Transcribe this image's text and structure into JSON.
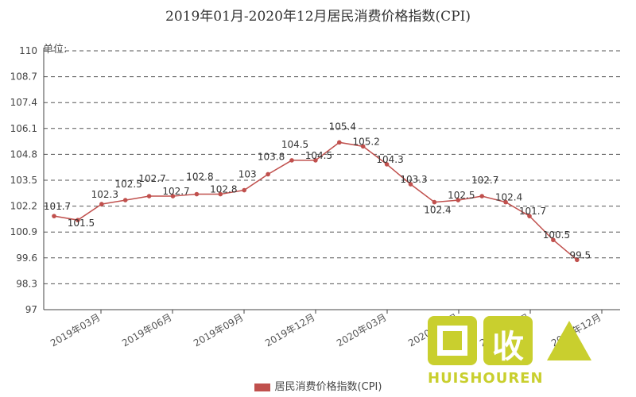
{
  "chart_data": {
    "type": "line",
    "title": "2019年01月-2020年12月居民消费价格指数(CPI)",
    "unit_label": "单位:",
    "ylim": [
      97,
      110
    ],
    "yticks": [
      "110",
      "108.7",
      "107.4",
      "106.1",
      "104.8",
      "103.5",
      "102.2",
      "100.9",
      "99.6",
      "98.3",
      "97"
    ],
    "xtick_labels": [
      "2019年03月",
      "2019年06月",
      "2019年09月",
      "2019年12月",
      "2020年03月",
      "2020年06月",
      "2020年09月",
      "2020年12月"
    ],
    "grid": "horizontal-dashed",
    "legend_position": "bottom",
    "series": [
      {
        "name": "居民消费价格指数(CPI)",
        "color": "#c0504d",
        "values": [
          101.7,
          101.5,
          102.3,
          102.5,
          102.7,
          102.7,
          102.8,
          102.8,
          103,
          103.8,
          104.5,
          104.5,
          105.4,
          105.2,
          104.3,
          103.3,
          102.4,
          102.5,
          102.7,
          102.4,
          101.7,
          100.5,
          99.5
        ],
        "labels": [
          "101.7",
          "101.5",
          "102.3",
          "102.5",
          "102.7",
          "102.7",
          "102.8",
          "102.8",
          "103",
          "103.8",
          "104.5",
          "104.5",
          "105.4",
          "105.2",
          "104.3",
          "103.3",
          "102.4",
          "102.5",
          "102.7",
          "102.4",
          "101.7",
          "100.5",
          "99.5"
        ]
      }
    ]
  },
  "watermark": {
    "char": "收",
    "text": "HUISHOUREN"
  }
}
